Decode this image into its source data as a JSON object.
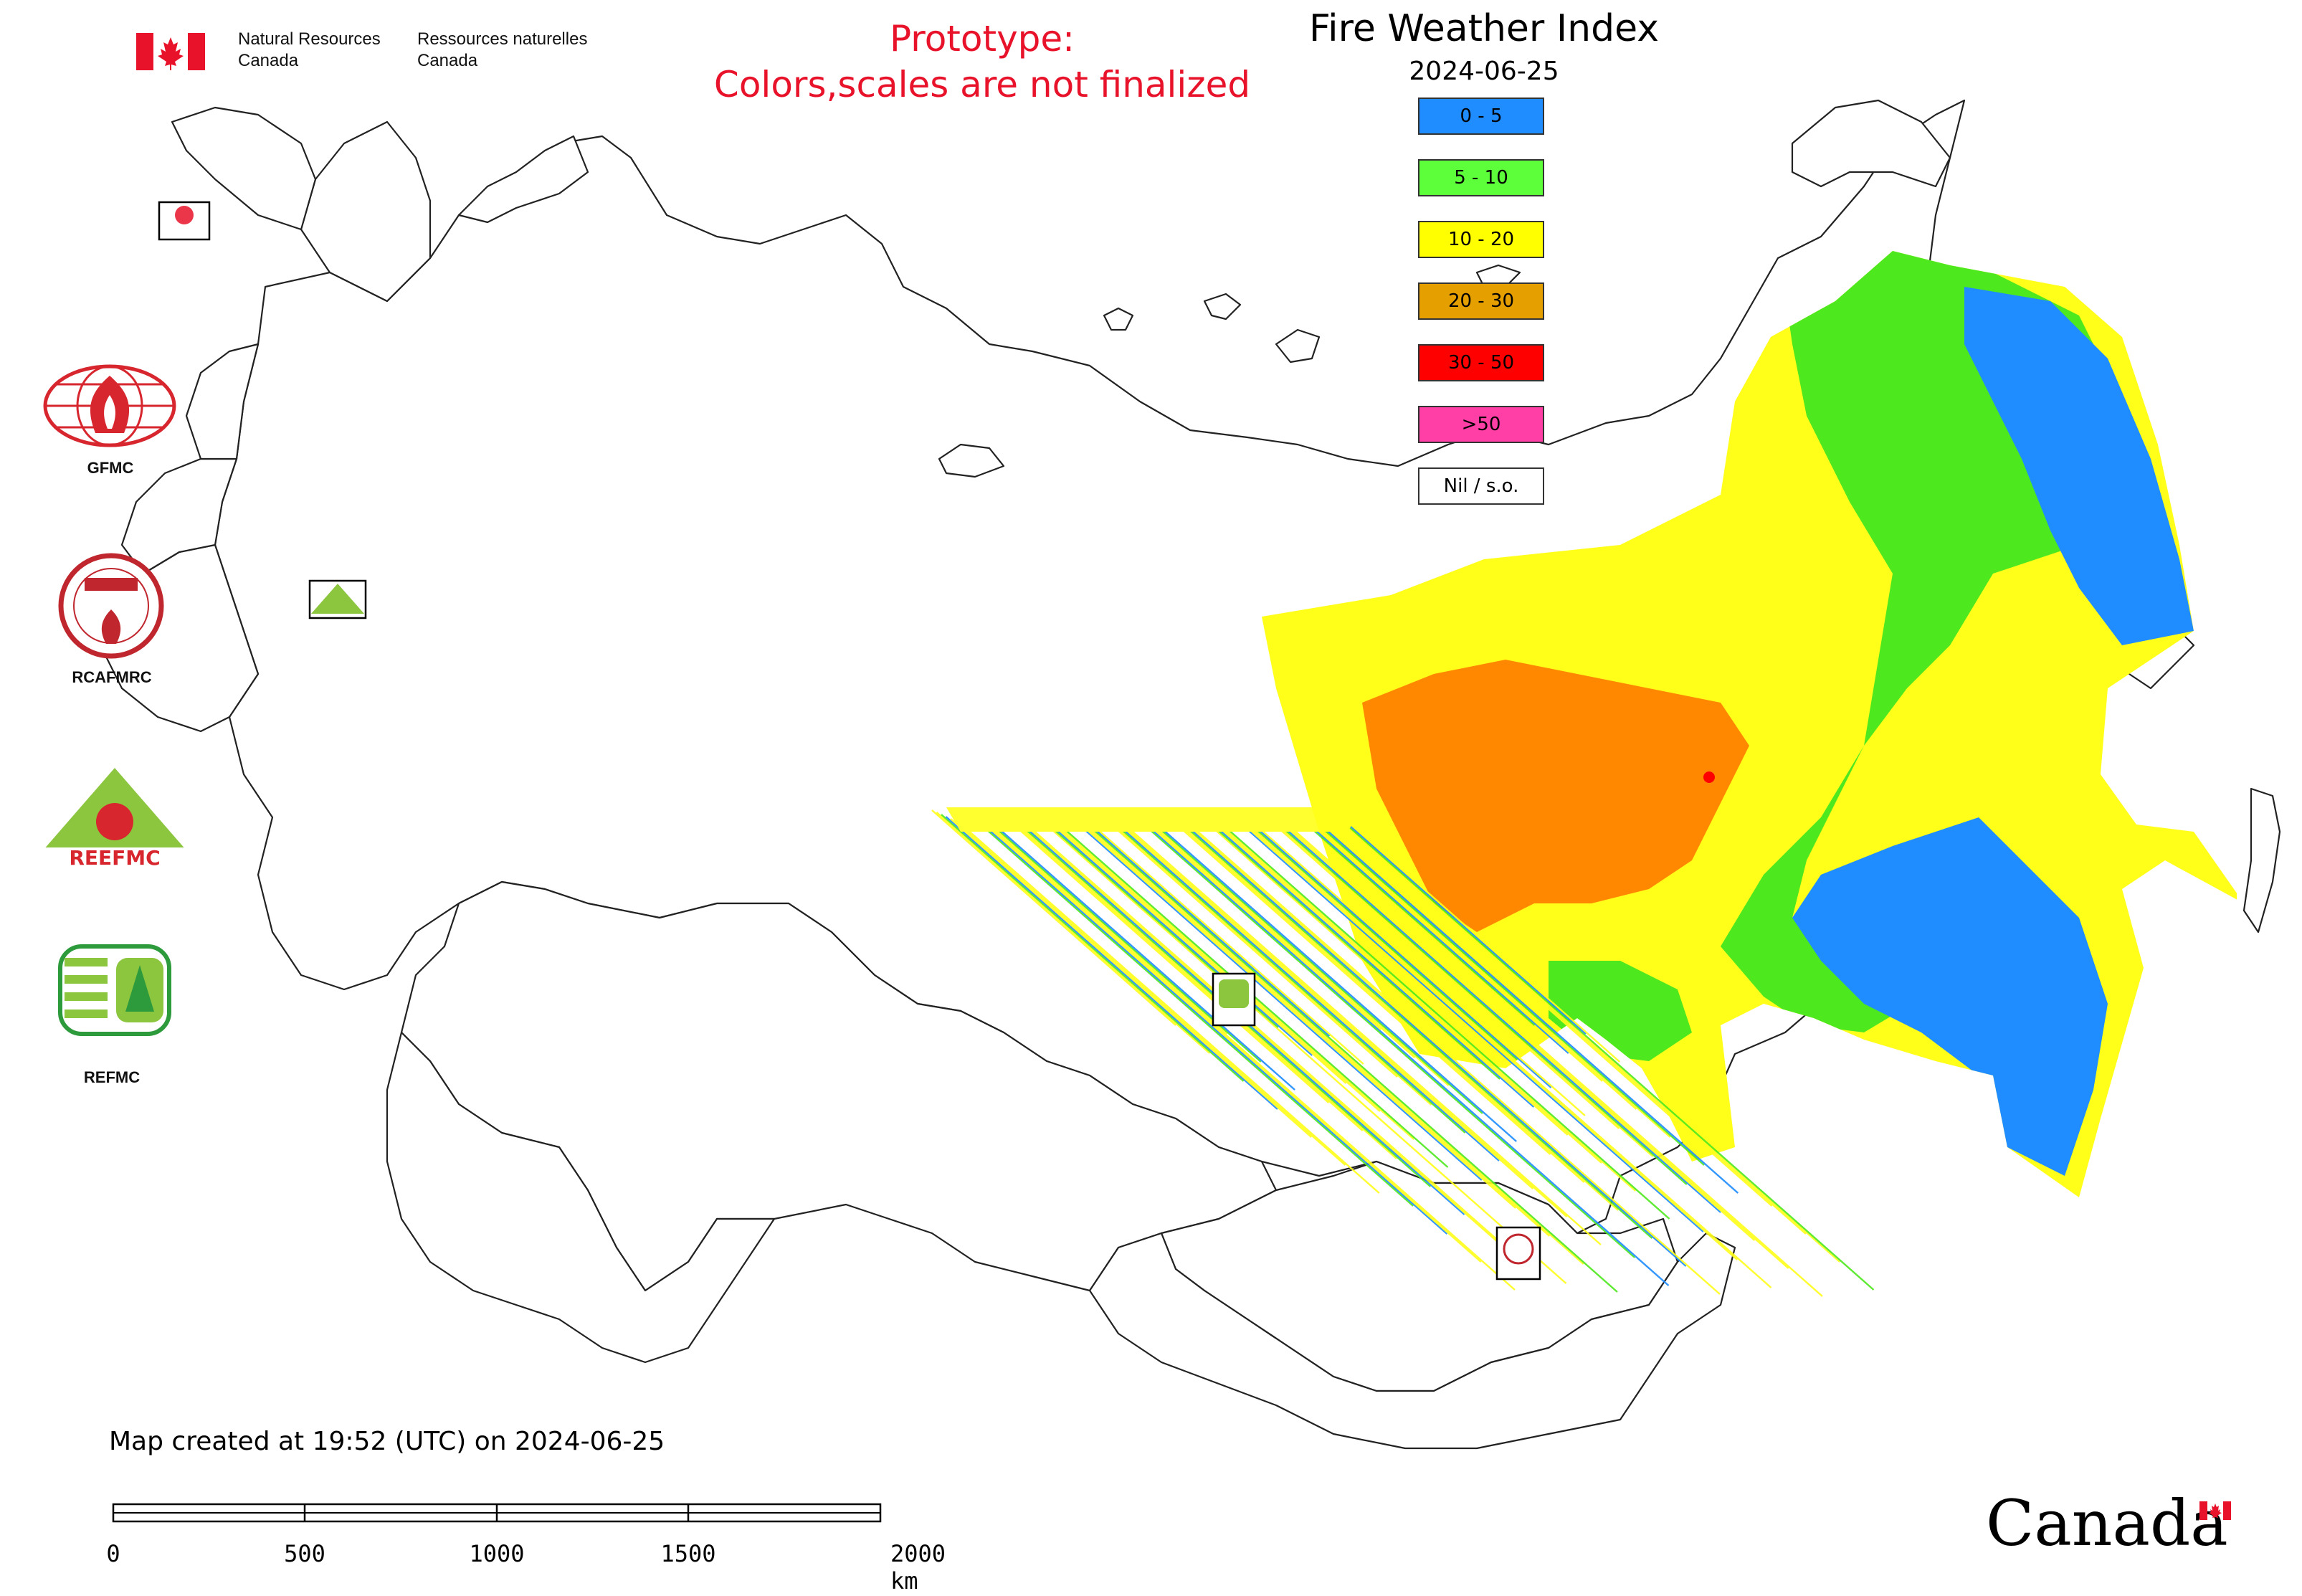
{
  "government": {
    "english": [
      "Natural Resources",
      "Canada"
    ],
    "french": [
      "Ressources naturelles",
      "Canada"
    ],
    "wordmark": "Canada",
    "flag_color": "#e8132a"
  },
  "warning": {
    "line1": "Prototype:",
    "line2": "Colors,scales are not finalized",
    "color": "#e8132a"
  },
  "title": "Fire Weather Index",
  "date": "2024-06-25",
  "legend": [
    {
      "label": "0 - 5",
      "color": "#1f8cff"
    },
    {
      "label": "5 - 10",
      "color": "#5cff3a"
    },
    {
      "label": "10 - 20",
      "color": "#ffff00"
    },
    {
      "label": "20 - 30",
      "color": "#e5a000"
    },
    {
      "label": "30 - 50",
      "color": "#ff0000"
    },
    {
      "label": ">50",
      "color": "#ff3fa6"
    },
    {
      "label": "Nil / s.o.",
      "color": "#ffffff"
    }
  ],
  "map_colors": {
    "class_0_5": "#1f8cff",
    "class_5_10": "#4ee81f",
    "class_10_20": "#ffff1a",
    "class_20_30": "#ff8800",
    "class_30_50": "#ff0000",
    "outline": "#222222"
  },
  "logos": [
    {
      "label": "GFMC",
      "icon": "gfmc-logo-icon"
    },
    {
      "label": "RCAFMRC",
      "icon": "rcafmrc-logo-icon"
    },
    {
      "label": "REEFMC",
      "icon": "reefmc-logo-icon"
    },
    {
      "label": "REFMC",
      "icon": "refmc-logo-icon"
    }
  ],
  "footer": {
    "created": "Map created at 19:52 (UTC) on 2024-06-25",
    "scale_labels": [
      "0",
      "500",
      "1000",
      "1500",
      "2000 km"
    ]
  }
}
